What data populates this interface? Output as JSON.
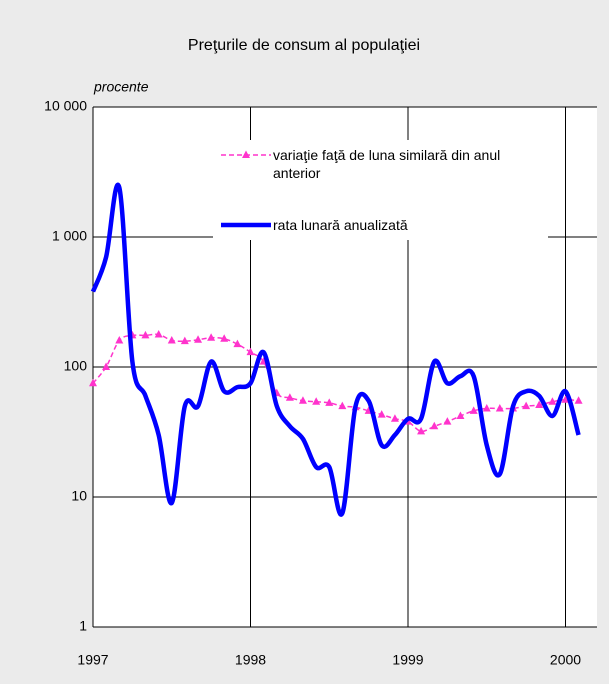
{
  "chart_data": {
    "type": "line",
    "title": "Preţurile de consum al populaţiei",
    "y_label": "procente",
    "log_scale": true,
    "grid": true,
    "xlim": [
      1997,
      2000.2
    ],
    "xticks": [
      1997,
      1998,
      1999,
      2000
    ],
    "ylim": [
      1,
      10000
    ],
    "yticks": [
      1,
      10,
      100,
      {
        "value": 1000,
        "label": "1 000"
      },
      {
        "value": 10000,
        "label": "10 000"
      }
    ],
    "x": [
      1997,
      1997.083,
      1997.167,
      1997.25,
      1997.333,
      1997.417,
      1997.5,
      1997.583,
      1997.667,
      1997.75,
      1997.833,
      1997.917,
      1998,
      1998.083,
      1998.167,
      1998.25,
      1998.333,
      1998.417,
      1998.5,
      1998.583,
      1998.667,
      1998.75,
      1998.833,
      1998.917,
      1999,
      1999.083,
      1999.167,
      1999.25,
      1999.333,
      1999.417,
      1999.5,
      1999.583,
      1999.667,
      1999.75,
      1999.833,
      1999.917,
      2000,
      2000.083
    ],
    "series": [
      {
        "name": "variaţie faţă de luna similară din anul anterior",
        "color": "#ff33cc",
        "style": "dashed-triangles",
        "values": [
          75,
          100,
          160,
          175,
          175,
          178,
          160,
          158,
          162,
          168,
          165,
          150,
          130,
          110,
          63,
          58,
          55,
          54,
          53,
          50,
          49,
          46,
          43,
          40,
          38,
          32,
          35,
          38,
          42,
          46,
          48,
          48,
          48,
          50,
          51,
          54,
          56,
          55
        ]
      },
      {
        "name": "rata lunară anualizată",
        "color": "#0000ff",
        "style": "thick",
        "values": [
          380,
          700,
          2400,
          110,
          60,
          30,
          9,
          50,
          50,
          110,
          65,
          70,
          75,
          130,
          50,
          35,
          28,
          17,
          17,
          7.5,
          50,
          55,
          25,
          30,
          40,
          40,
          110,
          75,
          85,
          85,
          25,
          15,
          50,
          65,
          60,
          42,
          65,
          30
        ]
      }
    ]
  }
}
